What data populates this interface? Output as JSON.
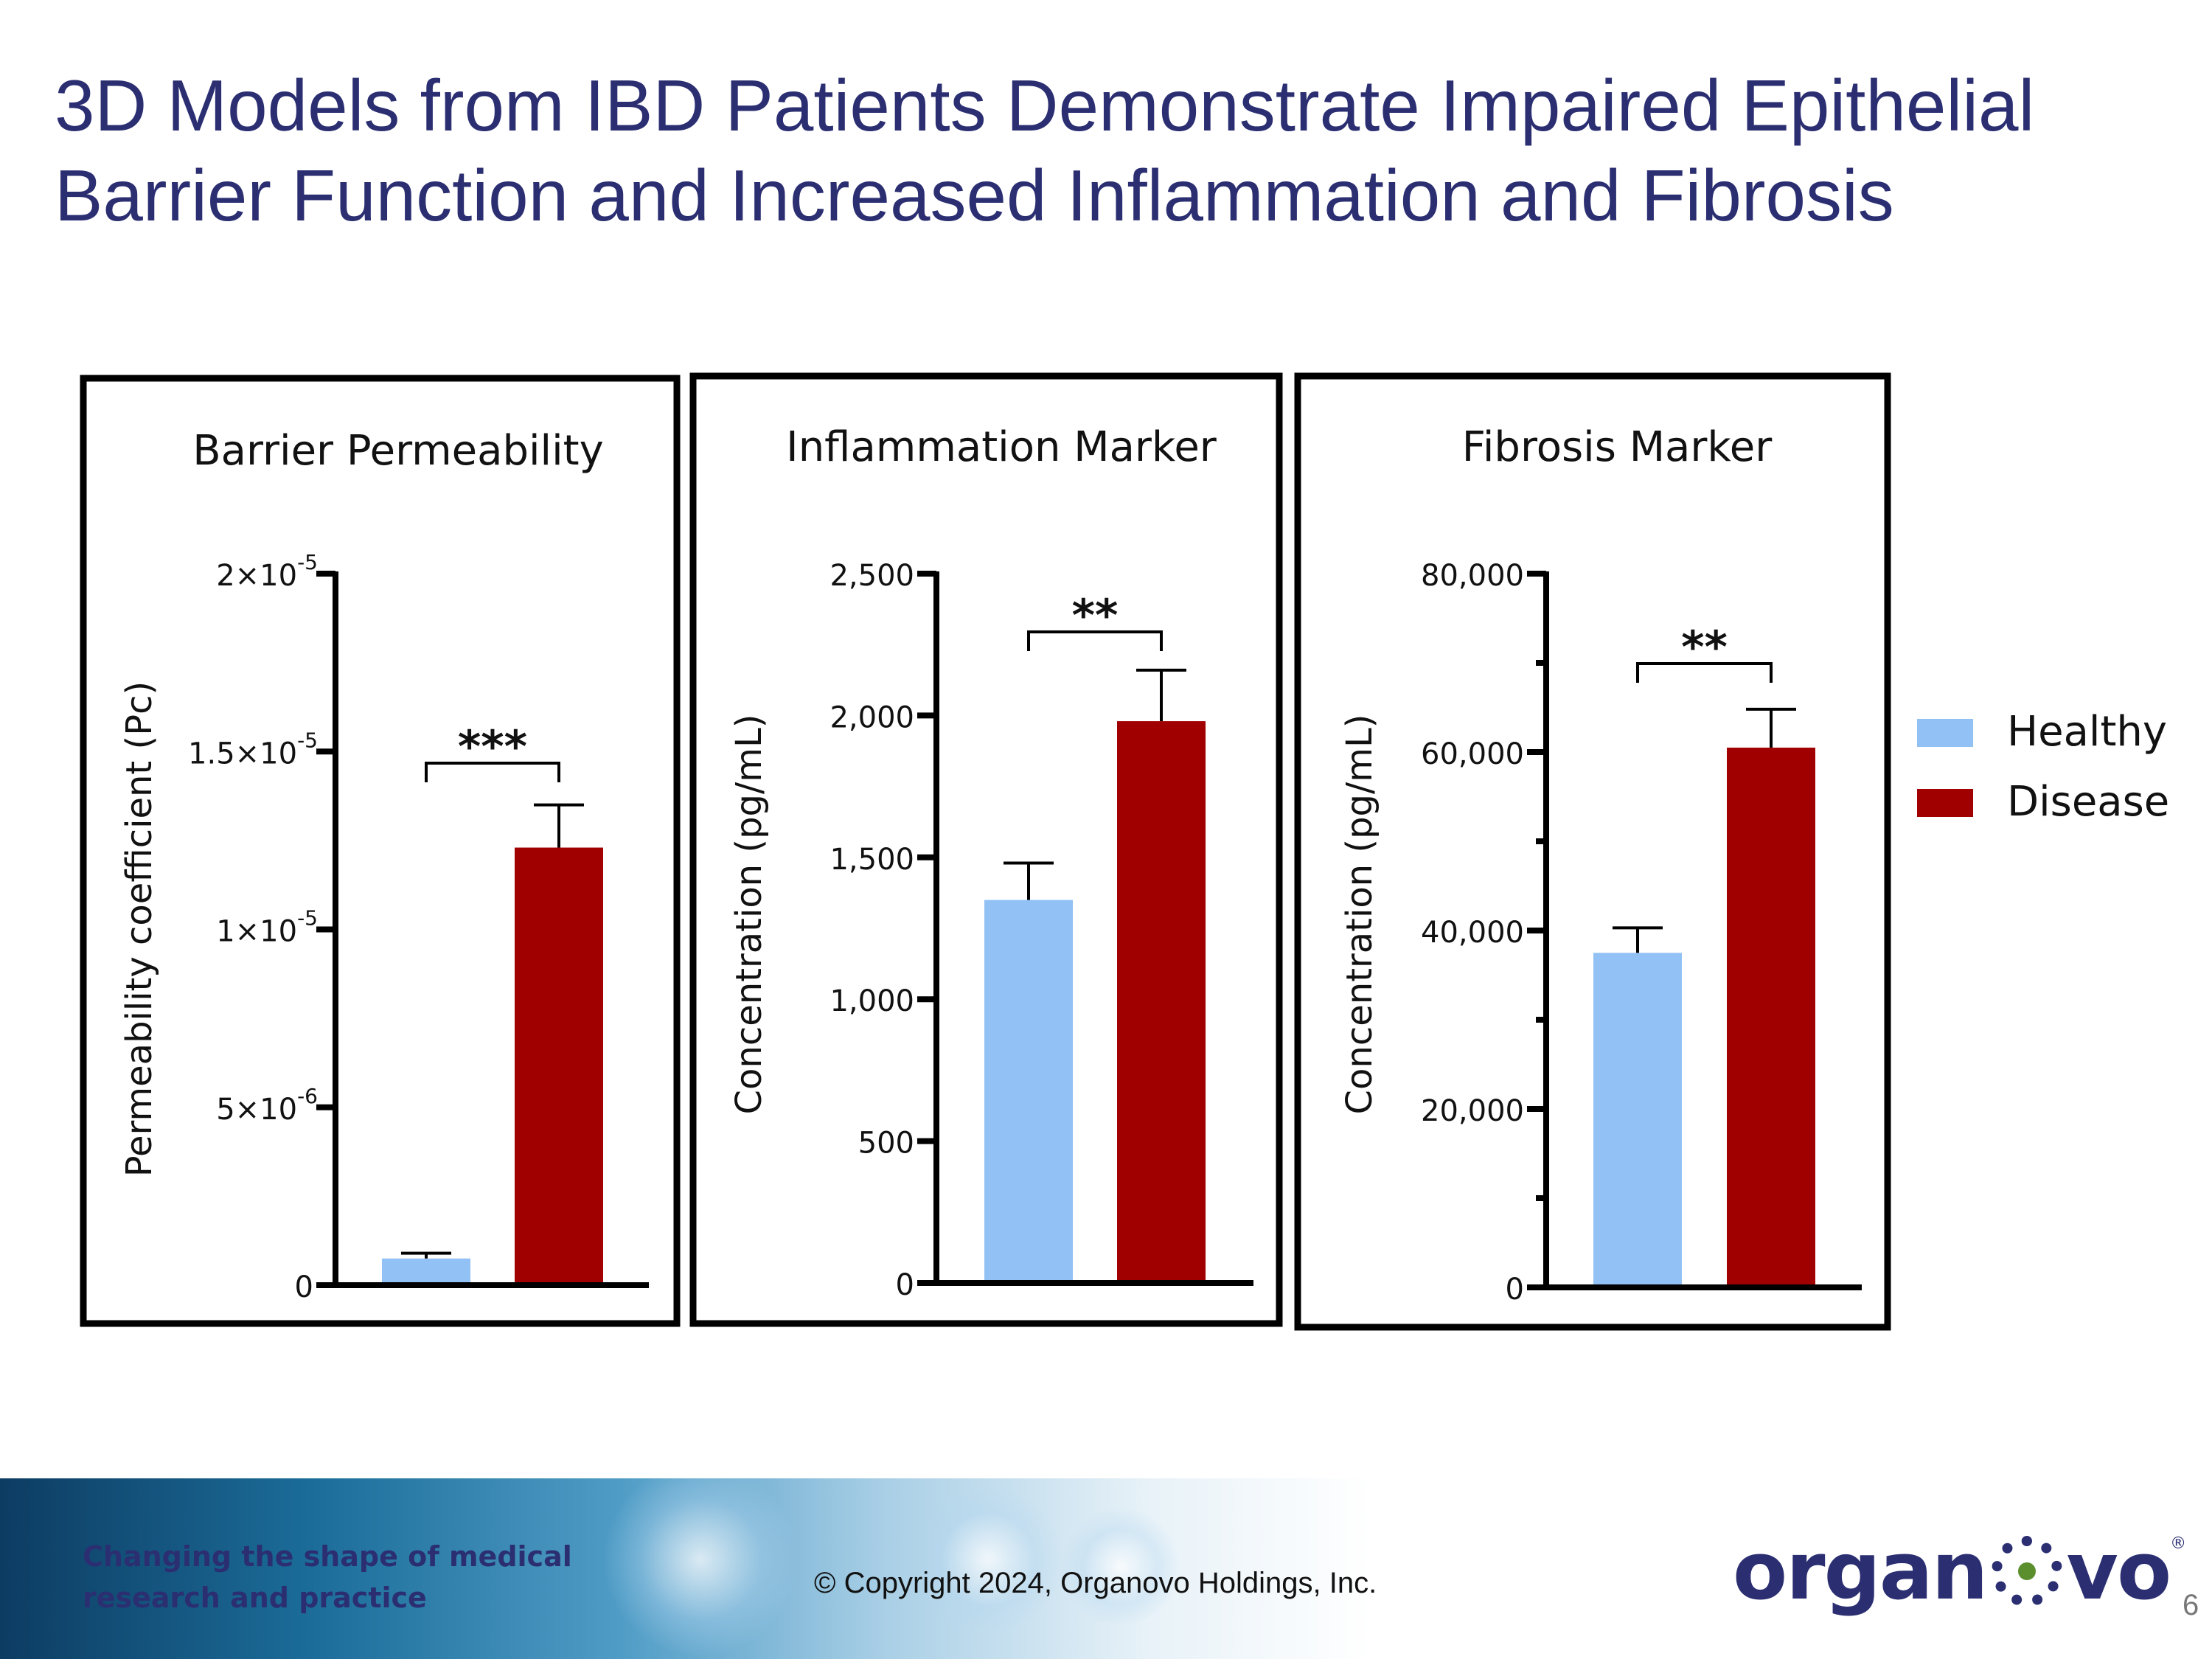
{
  "slide": {
    "title": "3D Models from IBD Patients Demonstrate Impaired Epithelial Barrier Function and Increased Inflammation and Fibrosis",
    "page_number": "6"
  },
  "legend": {
    "items": [
      {
        "label": "Healthy",
        "color": "#92c1f5"
      },
      {
        "label": "Disease",
        "color": "#a00000"
      }
    ]
  },
  "chart_data": [
    {
      "type": "bar",
      "title": "Barrier Permeability",
      "ylabel": "Permeability coefficient (Pc)",
      "categories": [
        "Healthy",
        "Disease"
      ],
      "values": [
        7.5e-07,
        1.23e-05
      ],
      "errors": [
        1.5e-07,
        1.2e-06
      ],
      "ylim": [
        0,
        2e-05
      ],
      "ticks": [
        {
          "value": 0,
          "base": "0",
          "exp": ""
        },
        {
          "value": 5e-06,
          "base": "5×10",
          "exp": "-6"
        },
        {
          "value": 1e-05,
          "base": "1×10",
          "exp": "-5"
        },
        {
          "value": 1.5e-05,
          "base": "1.5×10",
          "exp": "-5"
        },
        {
          "value": 2e-05,
          "base": "2×10",
          "exp": "-5"
        }
      ],
      "minor_ticks": [],
      "significance": "***",
      "colors": [
        "#92c1f5",
        "#a00000"
      ]
    },
    {
      "type": "bar",
      "title": "Inflammation Marker",
      "ylabel": "Concentration (pg/mL)",
      "categories": [
        "Healthy",
        "Disease"
      ],
      "values": [
        1350,
        1980
      ],
      "errors": [
        130,
        180
      ],
      "ylim": [
        0,
        2500
      ],
      "ticks": [
        {
          "value": 0,
          "base": "0",
          "exp": ""
        },
        {
          "value": 500,
          "base": "500",
          "exp": ""
        },
        {
          "value": 1000,
          "base": "1,000",
          "exp": ""
        },
        {
          "value": 1500,
          "base": "1,500",
          "exp": ""
        },
        {
          "value": 2000,
          "base": "2,000",
          "exp": ""
        },
        {
          "value": 2500,
          "base": "2,500",
          "exp": ""
        }
      ],
      "minor_ticks": [],
      "significance": "**",
      "colors": [
        "#92c1f5",
        "#a00000"
      ]
    },
    {
      "type": "bar",
      "title": "Fibrosis Marker",
      "ylabel": "Concentration (pg/mL)",
      "categories": [
        "Healthy",
        "Disease"
      ],
      "values": [
        37500,
        60500
      ],
      "errors": [
        2800,
        4300
      ],
      "ylim": [
        0,
        80000
      ],
      "ticks": [
        {
          "value": 0,
          "base": "0",
          "exp": ""
        },
        {
          "value": 20000,
          "base": "20,000",
          "exp": ""
        },
        {
          "value": 40000,
          "base": "40,000",
          "exp": ""
        },
        {
          "value": 60000,
          "base": "60,000",
          "exp": ""
        },
        {
          "value": 80000,
          "base": "80,000",
          "exp": ""
        }
      ],
      "minor_ticks": [
        10000,
        30000,
        50000,
        70000
      ],
      "significance": "**",
      "colors": [
        "#92c1f5",
        "#a00000"
      ]
    }
  ],
  "footer": {
    "tagline_line1": "Changing the shape of medical",
    "tagline_line2": "research and practice",
    "copyright": "© Copyright 2024, Organovo Holdings, Inc.",
    "logo_left": "organ",
    "logo_right": "vo",
    "logo_reg": "®"
  }
}
